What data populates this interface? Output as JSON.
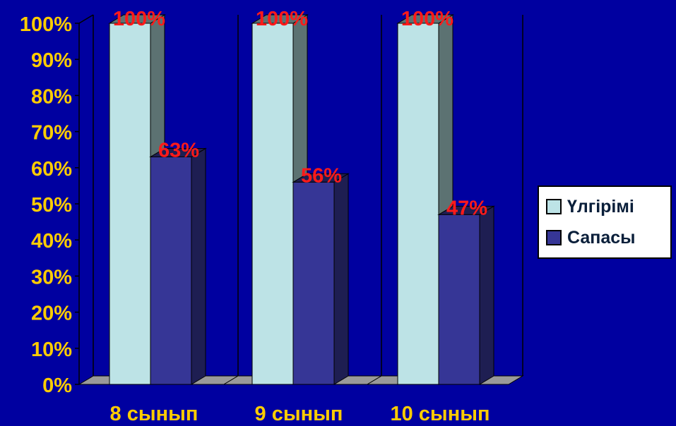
{
  "chart_data": {
    "type": "bar",
    "style": "3d-clustered-column",
    "categories": [
      "8 сынып",
      "9 сынып",
      "10 сынып"
    ],
    "series": [
      {
        "name": "Үлгірімі",
        "values": [
          100,
          100,
          100
        ],
        "labels": [
          "100%",
          "100%",
          "100%"
        ],
        "color": "#bde3e6"
      },
      {
        "name": "Сапасы",
        "values": [
          63,
          56,
          47
        ],
        "labels": [
          "63%",
          "56%",
          "47%"
        ],
        "color": "#363696"
      }
    ],
    "y_ticks": [
      "0%",
      "10%",
      "20%",
      "30%",
      "40%",
      "50%",
      "60%",
      "70%",
      "80%",
      "90%",
      "100%"
    ],
    "ylim": [
      0,
      100
    ],
    "grid": false,
    "legend_position": "right",
    "colors": {
      "background": "#0000a0",
      "tick_label": "#ffcc00",
      "category_label": "#ffcc00",
      "data_label": "#ff1a1a",
      "floor": "#9a9a9a",
      "side_light": "#5c7272",
      "side_dark": "#1e1e52"
    }
  }
}
